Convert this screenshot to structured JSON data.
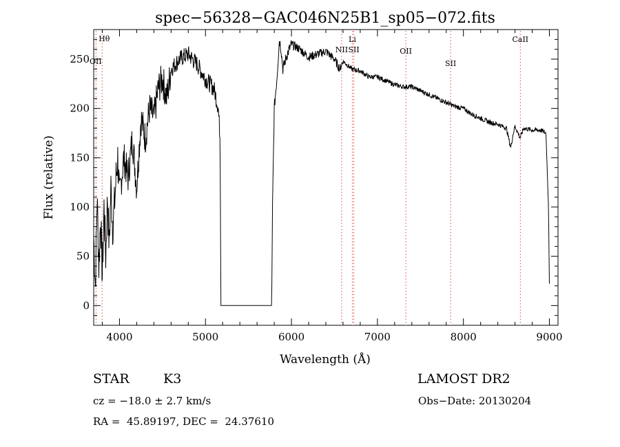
{
  "chart_data": {
    "type": "line",
    "title": "spec−56328−GAC046N25B1_sp05−072.fits",
    "xlabel": "Wavelength (Å)",
    "ylabel": "Flux (relative)",
    "xlim": [
      3700,
      9100
    ],
    "ylim": [
      -20,
      280
    ],
    "x_ticks": [
      4000,
      5000,
      6000,
      7000,
      8000,
      9000
    ],
    "y_ticks": [
      0,
      50,
      100,
      150,
      200,
      250
    ],
    "grid": false,
    "line_color": "#000000",
    "marker_color": "#e04040",
    "series": [
      {
        "x": [
          3700,
          3720,
          3740,
          3760,
          3780,
          3800,
          3820,
          3840,
          3860,
          3880,
          3900,
          3920,
          3940,
          3960,
          3980,
          4000,
          4050,
          4100,
          4150,
          4200,
          4250,
          4300,
          4350,
          4400,
          4450,
          4500,
          4550,
          4600,
          4700,
          4800,
          4900,
          5000,
          5100,
          5150,
          5170,
          5180,
          5200,
          5500,
          5770,
          5780,
          5800,
          5830,
          5860,
          5880,
          5900,
          5950,
          6000,
          6100,
          6200,
          6300,
          6400,
          6500,
          6560,
          6600,
          6700,
          6800,
          6900,
          7000,
          7100,
          7200,
          7300,
          7400,
          7500,
          7600,
          7700,
          7800,
          7900,
          8000,
          8100,
          8200,
          8300,
          8400,
          8500,
          8550,
          8580,
          8600,
          8660,
          8700,
          8800,
          8900,
          8960,
          8990,
          9000
        ],
        "y": [
          70,
          20,
          110,
          40,
          90,
          30,
          100,
          50,
          110,
          60,
          120,
          80,
          100,
          130,
          150,
          110,
          150,
          130,
          170,
          120,
          190,
          170,
          200,
          190,
          220,
          230,
          210,
          240,
          250,
          255,
          245,
          230,
          220,
          200,
          170,
          0,
          0,
          0,
          0,
          100,
          200,
          230,
          270,
          260,
          240,
          255,
          265,
          260,
          252,
          255,
          258,
          250,
          240,
          248,
          240,
          238,
          232,
          232,
          228,
          224,
          222,
          222,
          218,
          214,
          210,
          206,
          202,
          200,
          194,
          190,
          186,
          184,
          180,
          160,
          175,
          182,
          170,
          180,
          178,
          178,
          175,
          100,
          20
        ]
      }
    ],
    "lines": [
      {
        "name": "Hθ",
        "x": 3798
      },
      {
        "name": "OII",
        "x": 3727
      },
      {
        "name": "NII",
        "x": 6584
      },
      {
        "name": "Li",
        "x": 6708
      },
      {
        "name": "SII",
        "x": 6725
      },
      {
        "name": "OII",
        "x": 7330
      },
      {
        "name": "SII",
        "x": 7851
      },
      {
        "name": "CaII",
        "x": 8662
      }
    ]
  },
  "info": {
    "class_label": "STAR",
    "subclass": "K3",
    "survey": "LAMOST DR2",
    "cz": "cz = −18.0 ± 2.7 km/s",
    "obs_date": "Obs−Date: 20130204",
    "coords": "RA =  45.89197, DEC =  24.37610"
  }
}
